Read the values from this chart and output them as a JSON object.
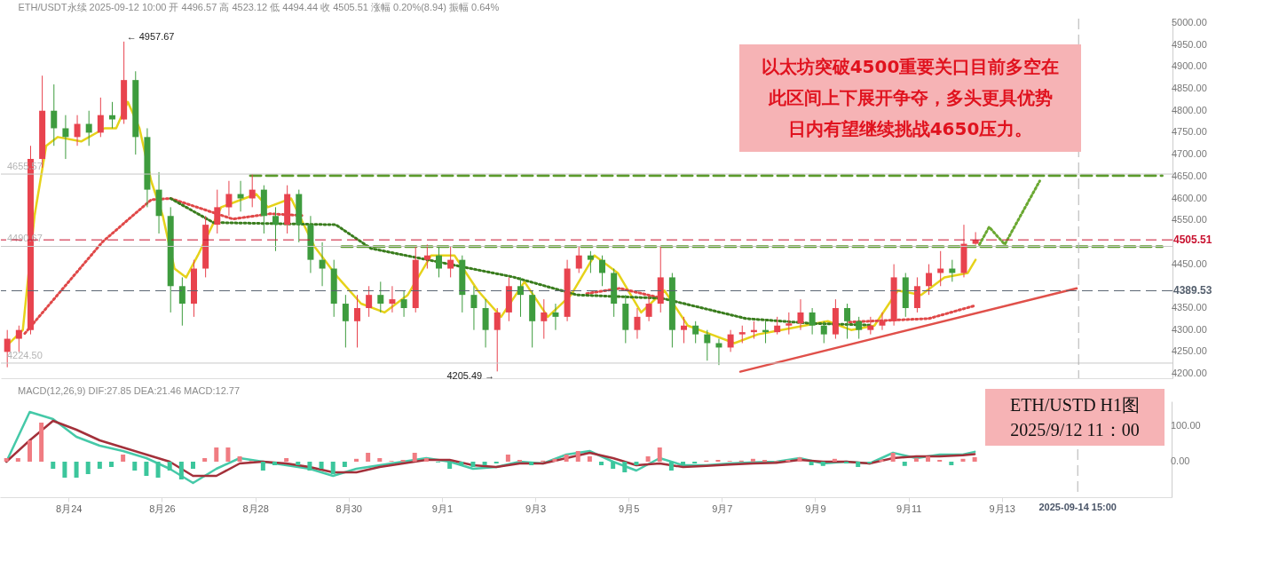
{
  "chart_data": [
    {
      "type": "candlestick",
      "title": "ETH/USDT永续  2025-09-12 10:00  开 4496.57  高 4523.12  低 4494.44  收 4505.51  涨幅 0.20%(8.94)  振幅 0.64%",
      "x": [
        "2025-08-22T16:00",
        "2025-08-22T22:00",
        "2025-08-23T04:00",
        "2025-08-23T10:00",
        "2025-08-23T16:00",
        "2025-08-23T22:00",
        "2025-08-24T04:00",
        "2025-08-24T10:00",
        "2025-08-24T16:00",
        "2025-08-24T22:00",
        "2025-08-25T04:00",
        "2025-08-25T10:00",
        "2025-08-25T16:00",
        "2025-08-25T22:00",
        "2025-08-26T04:00",
        "2025-08-26T10:00",
        "2025-08-26T16:00",
        "2025-08-26T22:00",
        "2025-08-27T04:00",
        "2025-08-27T10:00",
        "2025-08-27T16:00",
        "2025-08-27T22:00",
        "2025-08-28T04:00",
        "2025-08-28T10:00",
        "2025-08-28T16:00",
        "2025-08-28T22:00",
        "2025-08-29T04:00",
        "2025-08-29T10:00",
        "2025-08-29T16:00",
        "2025-08-29T22:00",
        "2025-08-30T04:00",
        "2025-08-30T10:00",
        "2025-08-30T16:00",
        "2025-08-30T22:00",
        "2025-08-31T04:00",
        "2025-08-31T10:00",
        "2025-08-31T16:00",
        "2025-08-31T22:00",
        "2025-09-01T04:00",
        "2025-09-01T10:00",
        "2025-09-01T16:00",
        "2025-09-01T22:00",
        "2025-09-02T04:00",
        "2025-09-02T10:00",
        "2025-09-02T16:00",
        "2025-09-02T22:00",
        "2025-09-03T04:00",
        "2025-09-03T10:00",
        "2025-09-03T16:00",
        "2025-09-03T22:00",
        "2025-09-04T04:00",
        "2025-09-04T10:00",
        "2025-09-04T16:00",
        "2025-09-04T22:00",
        "2025-09-05T04:00",
        "2025-09-05T10:00",
        "2025-09-05T16:00",
        "2025-09-05T22:00",
        "2025-09-06T04:00",
        "2025-09-06T10:00",
        "2025-09-06T16:00",
        "2025-09-06T22:00",
        "2025-09-07T04:00",
        "2025-09-07T10:00",
        "2025-09-07T16:00",
        "2025-09-07T22:00",
        "2025-09-08T04:00",
        "2025-09-08T10:00",
        "2025-09-08T16:00",
        "2025-09-08T22:00",
        "2025-09-09T04:00",
        "2025-09-09T10:00",
        "2025-09-09T16:00",
        "2025-09-09T22:00",
        "2025-09-10T04:00",
        "2025-09-10T10:00",
        "2025-09-10T16:00",
        "2025-09-10T22:00",
        "2025-09-11T04:00",
        "2025-09-11T10:00",
        "2025-09-11T16:00",
        "2025-09-11T22:00",
        "2025-09-12T04:00",
        "2025-09-12T10:00"
      ],
      "ohlc": [
        [
          4250,
          4300,
          4215,
          4280
        ],
        [
          4280,
          4310,
          4250,
          4300
        ],
        [
          4300,
          4720,
          4290,
          4690
        ],
        [
          4690,
          4880,
          4670,
          4800
        ],
        [
          4800,
          4860,
          4720,
          4760
        ],
        [
          4760,
          4790,
          4690,
          4740
        ],
        [
          4740,
          4790,
          4720,
          4770
        ],
        [
          4770,
          4800,
          4720,
          4750
        ],
        [
          4750,
          4830,
          4740,
          4790
        ],
        [
          4790,
          4820,
          4760,
          4780
        ],
        [
          4780,
          4957.67,
          4770,
          4870
        ],
        [
          4870,
          4890,
          4700,
          4740
        ],
        [
          4740,
          4760,
          4580,
          4620
        ],
        [
          4620,
          4660,
          4520,
          4560
        ],
        [
          4560,
          4580,
          4340,
          4400
        ],
        [
          4400,
          4420,
          4310,
          4360
        ],
        [
          4360,
          4460,
          4330,
          4440
        ],
        [
          4440,
          4560,
          4420,
          4540
        ],
        [
          4540,
          4620,
          4520,
          4580
        ],
        [
          4580,
          4640,
          4560,
          4610
        ],
        [
          4610,
          4640,
          4570,
          4600
        ],
        [
          4600,
          4655.57,
          4580,
          4620
        ],
        [
          4620,
          4630,
          4520,
          4560
        ],
        [
          4560,
          4580,
          4480,
          4540
        ],
        [
          4540,
          4630,
          4520,
          4610
        ],
        [
          4610,
          4620,
          4500,
          4540
        ],
        [
          4540,
          4560,
          4430,
          4460
        ],
        [
          4460,
          4500,
          4400,
          4440
        ],
        [
          4440,
          4460,
          4330,
          4360
        ],
        [
          4360,
          4380,
          4260,
          4320
        ],
        [
          4320,
          4380,
          4260,
          4350
        ],
        [
          4350,
          4400,
          4330,
          4380
        ],
        [
          4380,
          4410,
          4340,
          4360
        ],
        [
          4360,
          4400,
          4340,
          4370
        ],
        [
          4370,
          4390,
          4330,
          4350
        ],
        [
          4350,
          4490,
          4340,
          4460
        ],
        [
          4460,
          4495,
          4440,
          4470
        ],
        [
          4470,
          4490,
          4420,
          4440
        ],
        [
          4440,
          4490,
          4420,
          4460
        ],
        [
          4460,
          4470,
          4340,
          4380
        ],
        [
          4380,
          4400,
          4300,
          4350
        ],
        [
          4350,
          4370,
          4260,
          4300
        ],
        [
          4300,
          4350,
          4205.49,
          4340
        ],
        [
          4340,
          4420,
          4320,
          4400
        ],
        [
          4400,
          4420,
          4330,
          4380
        ],
        [
          4380,
          4390,
          4260,
          4320
        ],
        [
          4320,
          4370,
          4280,
          4340
        ],
        [
          4340,
          4360,
          4300,
          4330
        ],
        [
          4330,
          4460,
          4320,
          4440
        ],
        [
          4440,
          4490,
          4430,
          4470
        ],
        [
          4470,
          4480,
          4430,
          4460
        ],
        [
          4460,
          4470,
          4400,
          4430
        ],
        [
          4430,
          4440,
          4330,
          4360
        ],
        [
          4360,
          4380,
          4270,
          4300
        ],
        [
          4300,
          4350,
          4280,
          4330
        ],
        [
          4330,
          4380,
          4320,
          4360
        ],
        [
          4360,
          4490,
          4340,
          4420
        ],
        [
          4420,
          4430,
          4260,
          4300
        ],
        [
          4300,
          4330,
          4270,
          4310
        ],
        [
          4310,
          4320,
          4270,
          4290
        ],
        [
          4290,
          4300,
          4230,
          4270
        ],
        [
          4270,
          4280,
          4220,
          4260
        ],
        [
          4260,
          4300,
          4250,
          4290
        ],
        [
          4290,
          4310,
          4270,
          4295
        ],
        [
          4295,
          4320,
          4280,
          4300
        ],
        [
          4300,
          4320,
          4270,
          4295
        ],
        [
          4295,
          4330,
          4290,
          4310
        ],
        [
          4310,
          4340,
          4290,
          4315
        ],
        [
          4315,
          4370,
          4300,
          4340
        ],
        [
          4340,
          4350,
          4290,
          4310
        ],
        [
          4310,
          4320,
          4270,
          4290
        ],
        [
          4290,
          4370,
          4280,
          4350
        ],
        [
          4350,
          4360,
          4280,
          4320
        ],
        [
          4320,
          4330,
          4280,
          4300
        ],
        [
          4300,
          4330,
          4290,
          4310
        ],
        [
          4310,
          4340,
          4300,
          4320
        ],
        [
          4320,
          4450,
          4310,
          4420
        ],
        [
          4420,
          4430,
          4330,
          4350
        ],
        [
          4350,
          4420,
          4340,
          4400
        ],
        [
          4400,
          4450,
          4380,
          4430
        ],
        [
          4430,
          4480,
          4400,
          4440
        ],
        [
          4440,
          4460,
          4410,
          4430
        ],
        [
          4430,
          4540,
          4420,
          4496.57
        ],
        [
          4496.57,
          4523.12,
          4494.44,
          4505.51
        ]
      ],
      "colors": [
        "#e8434e",
        "#e8434e",
        "#e8434e",
        "#e8434e",
        "#3e9c3e",
        "#3e9c3e",
        "#e8434e",
        "#3e9c3e",
        "#e8434e",
        "#3e9c3e",
        "#e8434e",
        "#3e9c3e",
        "#3e9c3e",
        "#3e9c3e",
        "#3e9c3e",
        "#3e9c3e",
        "#e8434e",
        "#e8434e",
        "#e8434e",
        "#e8434e",
        "#3e9c3e",
        "#e8434e",
        "#3e9c3e",
        "#3e9c3e",
        "#e8434e",
        "#3e9c3e",
        "#3e9c3e",
        "#3e9c3e",
        "#3e9c3e",
        "#3e9c3e",
        "#e8434e",
        "#e8434e",
        "#3e9c3e",
        "#e8434e",
        "#3e9c3e",
        "#e8434e",
        "#e8434e",
        "#3e9c3e",
        "#e8434e",
        "#3e9c3e",
        "#3e9c3e",
        "#3e9c3e",
        "#e8434e",
        "#e8434e",
        "#3e9c3e",
        "#3e9c3e",
        "#e8434e",
        "#3e9c3e",
        "#e8434e",
        "#e8434e",
        "#3e9c3e",
        "#3e9c3e",
        "#3e9c3e",
        "#3e9c3e",
        "#e8434e",
        "#e8434e",
        "#e8434e",
        "#3e9c3e",
        "#e8434e",
        "#3e9c3e",
        "#3e9c3e",
        "#3e9c3e",
        "#e8434e",
        "#e8434e",
        "#e8434e",
        "#3e9c3e",
        "#e8434e",
        "#e8434e",
        "#e8434e",
        "#3e9c3e",
        "#3e9c3e",
        "#e8434e",
        "#3e9c3e",
        "#3e9c3e",
        "#e8434e",
        "#e8434e",
        "#e8434e",
        "#3e9c3e",
        "#e8434e",
        "#e8434e",
        "#e8434e",
        "#3e9c3e",
        "#e8434e",
        "#e8434e"
      ],
      "series": [
        {
          "type": "line",
          "color": "#e6d21a",
          "line_style": "solid",
          "x": [
            "2025-08-22T16:00",
            "2025-08-23T00:00",
            "2025-08-23T06:00",
            "2025-08-23T12:00",
            "2025-08-23T18:00",
            "2025-08-24T06:00",
            "2025-08-24T18:00",
            "2025-08-25T00:00",
            "2025-08-25T06:00",
            "2025-08-25T12:00",
            "2025-08-25T18:00",
            "2025-08-26T00:00",
            "2025-08-26T06:00",
            "2025-08-26T12:00",
            "2025-08-26T18:00",
            "2025-08-27T06:00",
            "2025-08-27T18:00",
            "2025-08-28T00:00",
            "2025-08-28T06:00",
            "2025-08-28T18:00",
            "2025-08-29T06:00",
            "2025-08-29T18:00",
            "2025-08-30T06:00",
            "2025-08-30T18:00",
            "2025-08-31T06:00",
            "2025-08-31T18:00",
            "2025-09-01T06:00",
            "2025-09-01T18:00",
            "2025-09-02T06:00",
            "2025-09-02T18:00",
            "2025-09-03T06:00",
            "2025-09-03T18:00",
            "2025-09-04T06:00",
            "2025-09-04T18:00",
            "2025-09-05T06:00",
            "2025-09-05T18:00",
            "2025-09-06T06:00",
            "2025-09-06T18:00",
            "2025-09-07T06:00",
            "2025-09-07T18:00",
            "2025-09-08T06:00",
            "2025-09-08T18:00",
            "2025-09-09T06:00",
            "2025-09-09T18:00",
            "2025-09-10T06:00",
            "2025-09-10T18:00",
            "2025-09-11T06:00",
            "2025-09-11T18:00",
            "2025-09-12T06:00",
            "2025-09-12T10:00"
          ],
          "values": [
            4265,
            4300,
            4560,
            4720,
            4740,
            4730,
            4760,
            4760,
            4820,
            4760,
            4640,
            4560,
            4440,
            4420,
            4470,
            4580,
            4600,
            4610,
            4580,
            4600,
            4490,
            4420,
            4360,
            4340,
            4380,
            4470,
            4470,
            4390,
            4330,
            4410,
            4330,
            4380,
            4470,
            4430,
            4340,
            4390,
            4310,
            4290,
            4270,
            4290,
            4300,
            4310,
            4320,
            4300,
            4310,
            4390,
            4380,
            4420,
            4430,
            4460
          ]
        },
        {
          "type": "line",
          "color": "#e04848",
          "line_style": "dotted",
          "x": [
            "2025-08-23T01:00",
            "2025-08-24T17:00",
            "2025-08-25T18:00",
            "2025-08-26T04:00",
            "2025-08-27T12:00",
            "2025-08-28T07:00",
            "2025-08-29T00:00"
          ],
          "values": [
            4292,
            4501,
            4597,
            4600,
            4553,
            4565,
            4561
          ]
        },
        {
          "type": "line",
          "color": "#e04848",
          "line_style": "dotted",
          "x": [
            "2025-09-04T02:00",
            "2025-09-04T19:00",
            "2025-09-05T17:00"
          ],
          "values": [
            4383,
            4395,
            4372
          ]
        },
        {
          "type": "line",
          "color": "#e04848",
          "line_style": "dotted",
          "x": [
            "2025-09-09T17:00",
            "2025-09-11T10:00",
            "2025-09-12T10:00"
          ],
          "values": [
            4318,
            4326,
            4356
          ]
        },
        {
          "type": "line",
          "color": "#3a7d1e",
          "line_style": "dotted",
          "x": [
            "2025-08-26T04:00",
            "2025-08-27T02:00",
            "2025-08-29T17:00",
            "2025-08-30T11:00",
            "2025-09-02T12:00",
            "2025-09-03T21:00",
            "2025-09-05T17:00",
            "2025-09-07T12:00",
            "2025-09-08T22:00",
            "2025-09-10T04:00"
          ],
          "values": [
            4600,
            4545,
            4540,
            4486,
            4421,
            4380,
            4372,
            4326,
            4315,
            4311
          ]
        },
        {
          "type": "line",
          "color": "#5b9b2b",
          "line_style": "dashed",
          "x": [
            "2025-08-27T21:00",
            "2025-09-16T10:00"
          ],
          "values": [
            4652,
            4652
          ]
        },
        {
          "type": "line",
          "color": "#5b9b2b",
          "line_style": "dashed",
          "x": [
            "2025-08-29T20:00",
            "2025-09-16T10:00"
          ],
          "values": [
            4490,
            4490
          ]
        },
        {
          "type": "line",
          "color": "#e0504a",
          "line_style": "solid",
          "x": [
            "2025-09-07T09:00",
            "2025-09-14T14:00"
          ],
          "values": [
            4205,
            4395
          ]
        },
        {
          "type": "line",
          "color": "#6aa832",
          "line_style": "dotted",
          "x": [
            "2025-09-12T12:00",
            "2025-09-12T17:00",
            "2025-09-13T01:00",
            "2025-09-13T19:00"
          ],
          "values": [
            4495,
            4535,
            4495,
            4640
          ]
        }
      ],
      "ref_lines": [
        {
          "axis": "y",
          "value": 4655.57,
          "label": "4655.57",
          "color": "#c8c8c8",
          "line_style": "solid"
        },
        {
          "axis": "y",
          "value": 4490.67,
          "label": "4490.67",
          "color": "#c8c8c8",
          "line_style": "solid"
        },
        {
          "axis": "y",
          "value": 4224.5,
          "label": "4224.50",
          "color": "#c8c8c8",
          "line_style": "solid"
        },
        {
          "axis": "y",
          "value": 4505.51,
          "label": "4505.51",
          "color": "#c8102e",
          "line_style": "dashed"
        },
        {
          "axis": "y",
          "value": 4389.53,
          "label": "4389.53",
          "color": "#55606e",
          "line_style": "dashed"
        },
        {
          "axis": "x",
          "value": "2025-09-14T15:00",
          "color": "#b0b0b0",
          "line_style": "dashed"
        }
      ],
      "annotations": [
        {
          "text": "← 4957.67",
          "x": "2025-08-25T04:00",
          "y": 4957.67
        },
        {
          "text": "4205.49 →",
          "x": "2025-09-02T04:00",
          "y": 4205.49
        },
        "以太坊突破4500重要关口目前多空在",
        "此区间上下展开争夺，多头更具优势",
        "日内有望继续挑战4650压力。"
      ],
      "xlim": [
        "2025-08-22T15:00",
        "2025-09-16T13:00"
      ],
      "ylim": [
        4190,
        5010
      ],
      "yticks": [
        {
          "value": 4200,
          "label": "4200.00"
        },
        {
          "value": 4250,
          "label": "4250.00"
        },
        {
          "value": 4300,
          "label": "4300.00"
        },
        {
          "value": 4350,
          "label": "4350.00"
        },
        {
          "value": 4450,
          "label": "4450.00"
        },
        {
          "value": 4550,
          "label": "4550.00"
        },
        {
          "value": 4600,
          "label": "4600.00"
        },
        {
          "value": 4650,
          "label": "4650.00"
        },
        {
          "value": 4700,
          "label": "4700.00"
        },
        {
          "value": 4750,
          "label": "4750.00"
        },
        {
          "value": 4800,
          "label": "4800.00"
        },
        {
          "value": 4850,
          "label": "4850.00"
        },
        {
          "value": 4900,
          "label": "4900.00"
        },
        {
          "value": 4950,
          "label": "4950.00"
        },
        {
          "value": 5000,
          "label": "5000.00"
        }
      ],
      "tick_labels": "y"
    },
    {
      "type": "bar",
      "title": "MACD(12,26,9)  DIF:27.85  DEA:21.46  MACD:12.77",
      "x": [
        "2025-08-22T16:00",
        "2025-08-22T22:00",
        "2025-08-23T04:00",
        "2025-08-23T10:00",
        "2025-08-23T16:00",
        "2025-08-23T22:00",
        "2025-08-24T04:00",
        "2025-08-24T10:00",
        "2025-08-24T16:00",
        "2025-08-24T22:00",
        "2025-08-25T04:00",
        "2025-08-25T10:00",
        "2025-08-25T16:00",
        "2025-08-25T22:00",
        "2025-08-26T04:00",
        "2025-08-26T10:00",
        "2025-08-26T16:00",
        "2025-08-26T22:00",
        "2025-08-27T04:00",
        "2025-08-27T10:00",
        "2025-08-27T16:00",
        "2025-08-27T22:00",
        "2025-08-28T04:00",
        "2025-08-28T10:00",
        "2025-08-28T16:00",
        "2025-08-28T22:00",
        "2025-08-29T04:00",
        "2025-08-29T10:00",
        "2025-08-29T16:00",
        "2025-08-29T22:00",
        "2025-08-30T04:00",
        "2025-08-30T10:00",
        "2025-08-30T16:00",
        "2025-08-30T22:00",
        "2025-08-31T04:00",
        "2025-08-31T10:00",
        "2025-08-31T16:00",
        "2025-08-31T22:00",
        "2025-09-01T04:00",
        "2025-09-01T10:00",
        "2025-09-01T16:00",
        "2025-09-01T22:00",
        "2025-09-02T04:00",
        "2025-09-02T10:00",
        "2025-09-02T16:00",
        "2025-09-02T22:00",
        "2025-09-03T04:00",
        "2025-09-03T10:00",
        "2025-09-03T16:00",
        "2025-09-03T22:00",
        "2025-09-04T04:00",
        "2025-09-04T10:00",
        "2025-09-04T16:00",
        "2025-09-04T22:00",
        "2025-09-05T04:00",
        "2025-09-05T10:00",
        "2025-09-05T16:00",
        "2025-09-05T22:00",
        "2025-09-06T04:00",
        "2025-09-06T10:00",
        "2025-09-06T16:00",
        "2025-09-06T22:00",
        "2025-09-07T04:00",
        "2025-09-07T10:00",
        "2025-09-07T16:00",
        "2025-09-07T22:00",
        "2025-09-08T04:00",
        "2025-09-08T10:00",
        "2025-09-08T16:00",
        "2025-09-08T22:00",
        "2025-09-09T04:00",
        "2025-09-09T10:00",
        "2025-09-09T16:00",
        "2025-09-09T22:00",
        "2025-09-10T04:00",
        "2025-09-10T10:00",
        "2025-09-10T16:00",
        "2025-09-10T22:00",
        "2025-09-11T04:00",
        "2025-09-11T10:00",
        "2025-09-11T16:00",
        "2025-09-11T22:00",
        "2025-09-12T04:00",
        "2025-09-12T10:00"
      ],
      "values": [
        10,
        10,
        60,
        110,
        -20,
        -45,
        -45,
        -35,
        -20,
        -15,
        20,
        -25,
        -40,
        -45,
        -25,
        -50,
        -20,
        10,
        40,
        40,
        15,
        2,
        -25,
        -10,
        10,
        -10,
        -25,
        -20,
        -35,
        -15,
        8,
        25,
        10,
        2,
        5,
        25,
        10,
        -2,
        -20,
        -10,
        -15,
        -10,
        -5,
        20,
        5,
        -10,
        3,
        8,
        20,
        30,
        15,
        -10,
        -20,
        -30,
        -10,
        15,
        40,
        -25,
        -10,
        -5,
        3,
        5,
        2,
        3,
        8,
        5,
        2,
        5,
        12,
        -10,
        -12,
        8,
        -5,
        -15,
        -5,
        5,
        25,
        -12,
        10,
        15,
        5,
        -10,
        8,
        12.77
      ],
      "colors": [
        "#f07c82",
        "#f07c82",
        "#f07c82",
        "#f07c82",
        "#3cc69c",
        "#3cc69c",
        "#3cc69c",
        "#3cc69c",
        "#3cc69c",
        "#3cc69c",
        "#f07c82",
        "#3cc69c",
        "#3cc69c",
        "#3cc69c",
        "#3cc69c",
        "#3cc69c",
        "#3cc69c",
        "#f07c82",
        "#f07c82",
        "#f07c82",
        "#f07c82",
        "#f07c82",
        "#3cc69c",
        "#3cc69c",
        "#f07c82",
        "#3cc69c",
        "#3cc69c",
        "#3cc69c",
        "#3cc69c",
        "#3cc69c",
        "#f07c82",
        "#f07c82",
        "#f07c82",
        "#f07c82",
        "#f07c82",
        "#f07c82",
        "#f07c82",
        "#3cc69c",
        "#3cc69c",
        "#3cc69c",
        "#3cc69c",
        "#3cc69c",
        "#3cc69c",
        "#f07c82",
        "#f07c82",
        "#3cc69c",
        "#f07c82",
        "#f07c82",
        "#f07c82",
        "#f07c82",
        "#f07c82",
        "#3cc69c",
        "#3cc69c",
        "#3cc69c",
        "#3cc69c",
        "#f07c82",
        "#f07c82",
        "#3cc69c",
        "#3cc69c",
        "#3cc69c",
        "#f07c82",
        "#f07c82",
        "#f07c82",
        "#f07c82",
        "#f07c82",
        "#f07c82",
        "#f07c82",
        "#f07c82",
        "#f07c82",
        "#3cc69c",
        "#3cc69c",
        "#f07c82",
        "#3cc69c",
        "#3cc69c",
        "#3cc69c",
        "#f07c82",
        "#f07c82",
        "#3cc69c",
        "#f07c82",
        "#f07c82",
        "#f07c82",
        "#3cc69c",
        "#f07c82",
        "#f07c82"
      ],
      "series": [
        {
          "type": "line",
          "color": "#45c9a8",
          "line_style": "solid",
          "x": [
            "2025-08-22T16:00",
            "2025-08-23T04:00",
            "2025-08-23T16:00",
            "2025-08-24T04:00",
            "2025-08-24T16:00",
            "2025-08-25T04:00",
            "2025-08-25T16:00",
            "2025-08-26T04:00",
            "2025-08-26T16:00",
            "2025-08-27T04:00",
            "2025-08-27T16:00",
            "2025-08-28T04:00",
            "2025-08-28T16:00",
            "2025-08-29T04:00",
            "2025-08-29T16:00",
            "2025-08-30T04:00",
            "2025-08-30T16:00",
            "2025-08-31T04:00",
            "2025-08-31T16:00",
            "2025-09-01T04:00",
            "2025-09-01T16:00",
            "2025-09-02T04:00",
            "2025-09-02T16:00",
            "2025-09-03T04:00",
            "2025-09-03T16:00",
            "2025-09-04T04:00",
            "2025-09-04T16:00",
            "2025-09-05T04:00",
            "2025-09-05T16:00",
            "2025-09-06T04:00",
            "2025-09-06T16:00",
            "2025-09-07T04:00",
            "2025-09-07T16:00",
            "2025-09-08T04:00",
            "2025-09-08T16:00",
            "2025-09-09T04:00",
            "2025-09-09T16:00",
            "2025-09-10T04:00",
            "2025-09-10T16:00",
            "2025-09-11T04:00",
            "2025-09-11T16:00",
            "2025-09-12T04:00",
            "2025-09-12T10:00"
          ],
          "values": [
            0,
            140,
            120,
            70,
            45,
            30,
            10,
            -20,
            -60,
            -20,
            10,
            0,
            -10,
            -20,
            -40,
            -20,
            -10,
            0,
            10,
            0,
            -20,
            -15,
            0,
            -5,
            20,
            30,
            0,
            -25,
            10,
            -10,
            -10,
            -5,
            -2,
            0,
            10,
            -5,
            0,
            -5,
            25,
            10,
            20,
            20,
            27.85
          ]
        },
        {
          "type": "line",
          "color": "#a3303a",
          "line_style": "solid",
          "x": [
            "2025-08-22T16:00",
            "2025-08-23T04:00",
            "2025-08-23T16:00",
            "2025-08-24T04:00",
            "2025-08-24T16:00",
            "2025-08-25T04:00",
            "2025-08-25T16:00",
            "2025-08-26T04:00",
            "2025-08-26T16:00",
            "2025-08-27T04:00",
            "2025-08-27T16:00",
            "2025-08-28T04:00",
            "2025-08-28T16:00",
            "2025-08-29T04:00",
            "2025-08-29T16:00",
            "2025-08-30T04:00",
            "2025-08-30T16:00",
            "2025-08-31T04:00",
            "2025-08-31T16:00",
            "2025-09-01T04:00",
            "2025-09-01T16:00",
            "2025-09-02T04:00",
            "2025-09-02T16:00",
            "2025-09-03T04:00",
            "2025-09-03T16:00",
            "2025-09-04T04:00",
            "2025-09-04T16:00",
            "2025-09-05T04:00",
            "2025-09-05T16:00",
            "2025-09-06T04:00",
            "2025-09-06T16:00",
            "2025-09-07T04:00",
            "2025-09-07T16:00",
            "2025-09-08T04:00",
            "2025-09-08T16:00",
            "2025-09-09T04:00",
            "2025-09-09T16:00",
            "2025-09-10T04:00",
            "2025-09-10T16:00",
            "2025-09-11T04:00",
            "2025-09-11T16:00",
            "2025-09-12T04:00",
            "2025-09-12T10:00"
          ],
          "values": [
            0,
            60,
            115,
            90,
            60,
            40,
            20,
            0,
            -40,
            -40,
            -5,
            0,
            -5,
            -15,
            -30,
            -30,
            -15,
            -5,
            5,
            5,
            -10,
            -15,
            -5,
            -5,
            10,
            25,
            10,
            -10,
            -5,
            -15,
            -12,
            -8,
            -5,
            -3,
            5,
            0,
            0,
            -5,
            10,
            15,
            15,
            18,
            21.46
          ]
        }
      ],
      "ref_lines": [
        {
          "axis": "x",
          "value": "2025-09-14T15:00",
          "label": "2025-09-14 15:00",
          "color": "#b0b0b0",
          "line_style": "dashed"
        }
      ],
      "annotations": [
        "ETH/USTD  H1图",
        "2025/9/12 11：00"
      ],
      "xlim": [
        "2025-08-22T15:00",
        "2025-09-16T13:00"
      ],
      "xticks": [
        {
          "value": "2025-08-24",
          "label": "8月24"
        },
        {
          "value": "2025-08-26",
          "label": "8月26"
        },
        {
          "value": "2025-08-28",
          "label": "8月28"
        },
        {
          "value": "2025-08-30",
          "label": "8月30"
        },
        {
          "value": "2025-09-01",
          "label": "9月1"
        },
        {
          "value": "2025-09-03",
          "label": "9月3"
        },
        {
          "value": "2025-09-05",
          "label": "9月5"
        },
        {
          "value": "2025-09-07",
          "label": "9月7"
        },
        {
          "value": "2025-09-09",
          "label": "9月9"
        },
        {
          "value": "2025-09-11",
          "label": "9月11"
        },
        {
          "value": "2025-09-13",
          "label": "9月13"
        }
      ],
      "ylim": [
        -100,
        170
      ],
      "yticks": [
        {
          "value": 0,
          "label": "0.00"
        },
        {
          "value": 100,
          "label": "100.00"
        }
      ]
    }
  ]
}
